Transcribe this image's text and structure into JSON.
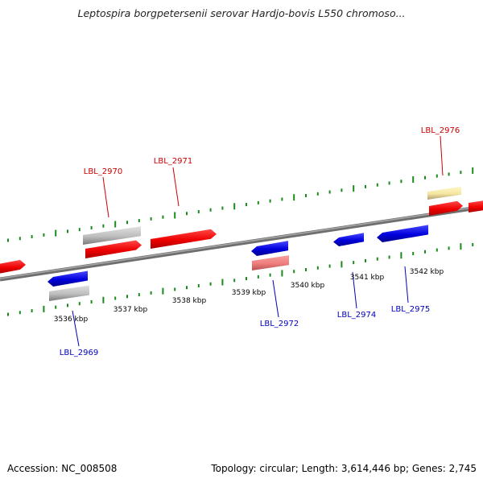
{
  "title": "Leptospira borgpetersenii serovar Hardjo-bovis L550 chromoso...",
  "footer": {
    "accession": "Accession: NC_008508",
    "stats": "Topology: circular; Length: 3,614,446 bp; Genes: 2,745"
  },
  "colors": {
    "forward": "#ff0000",
    "reverse": "#0000ee",
    "forward_label": "#cc0000",
    "reverse_label": "#0000bb",
    "grey_gene": "#bdbdbd",
    "pink_gene": "#f08080",
    "yellow_gene": "#f5e6a0",
    "backbone": "#808080",
    "ticks": "#1a8a1a"
  },
  "kbp_labels": [
    "3536 kbp",
    "3537 kbp",
    "3538 kbp",
    "3539 kbp",
    "3540 kbp",
    "3541 kbp",
    "3542 kbp"
  ],
  "gene_labels": {
    "forward": [
      "LBL_2970",
      "LBL_2971",
      "LBL_2976"
    ],
    "reverse": [
      "LBL_2969",
      "LBL_2972",
      "LBL_2974",
      "LBL_2975"
    ]
  }
}
